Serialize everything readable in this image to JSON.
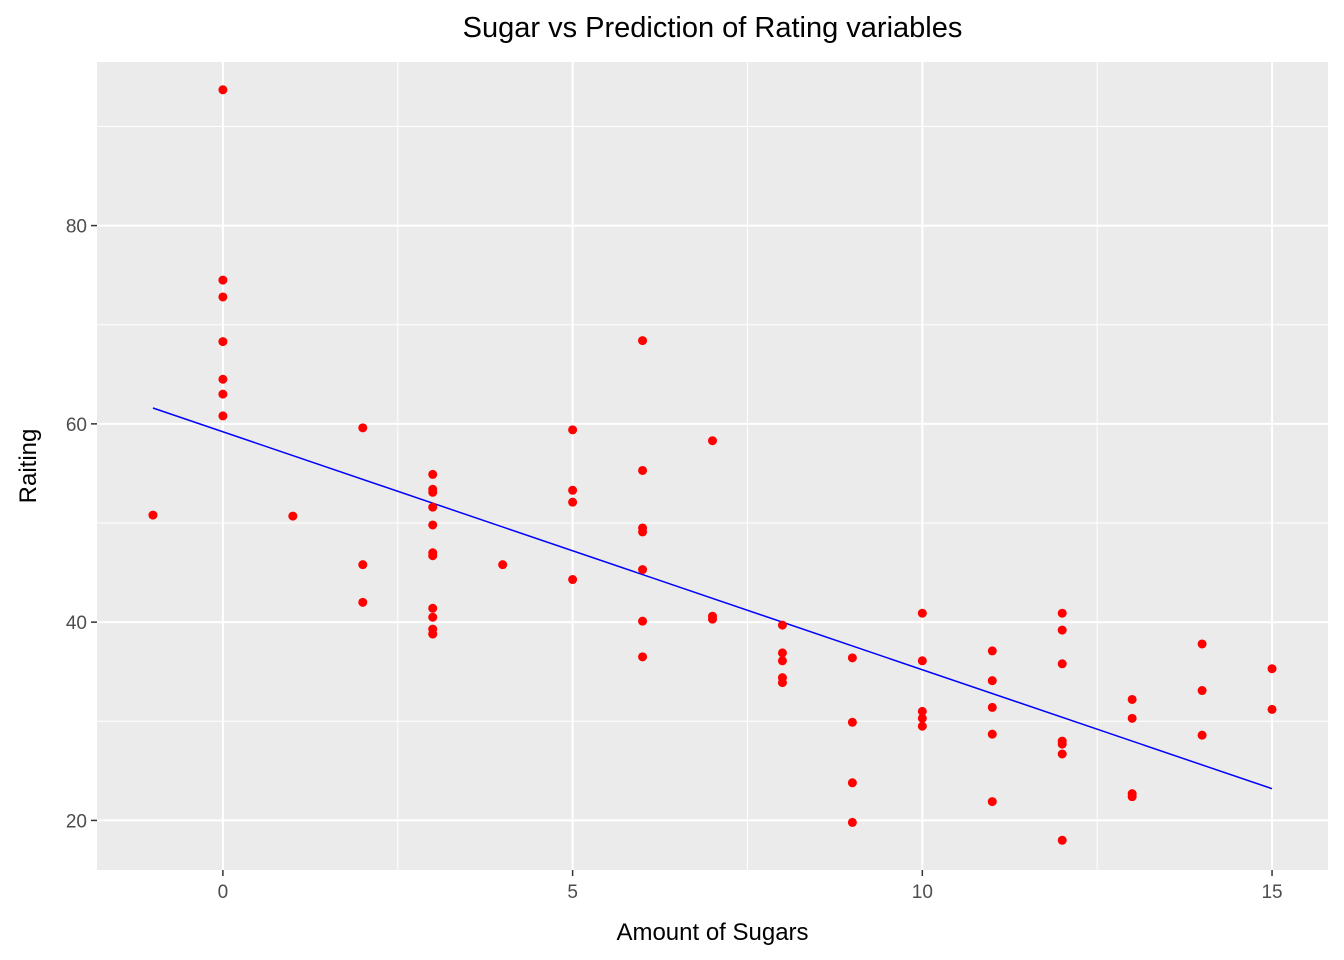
{
  "chart_data": {
    "type": "scatter",
    "title": "Sugar vs Prediction of Rating variables",
    "xlabel": "Amount of Sugars",
    "ylabel": "Raiting",
    "xlim": [
      -1.8,
      15.8
    ],
    "ylim": [
      15,
      96.5
    ],
    "x_ticks": [
      0,
      5,
      10,
      15
    ],
    "y_ticks": [
      20,
      40,
      60,
      80
    ],
    "grid": true,
    "point_color": "#ff0000",
    "line_color": "#0000ff",
    "panel_color": "#ebebeb",
    "points": [
      [
        -1,
        50.8
      ],
      [
        0,
        93.7
      ],
      [
        0,
        74.5
      ],
      [
        0,
        72.8
      ],
      [
        0,
        68.3
      ],
      [
        0,
        64.5
      ],
      [
        0,
        63.0
      ],
      [
        0,
        60.8
      ],
      [
        1,
        50.7
      ],
      [
        2,
        59.6
      ],
      [
        2,
        45.8
      ],
      [
        2,
        42.0
      ],
      [
        3,
        54.9
      ],
      [
        3,
        53.4
      ],
      [
        3,
        53.1
      ],
      [
        3,
        51.6
      ],
      [
        3,
        49.8
      ],
      [
        3,
        47.0
      ],
      [
        3,
        46.7
      ],
      [
        3,
        41.4
      ],
      [
        3,
        40.5
      ],
      [
        3,
        39.3
      ],
      [
        3,
        38.8
      ],
      [
        4,
        45.8
      ],
      [
        5,
        59.4
      ],
      [
        5,
        53.3
      ],
      [
        5,
        52.1
      ],
      [
        5,
        44.3
      ],
      [
        6,
        68.4
      ],
      [
        6,
        55.3
      ],
      [
        6,
        49.5
      ],
      [
        6,
        49.1
      ],
      [
        6,
        45.3
      ],
      [
        6,
        40.1
      ],
      [
        6,
        36.5
      ],
      [
        7,
        58.3
      ],
      [
        7,
        40.6
      ],
      [
        7,
        40.3
      ],
      [
        8,
        39.7
      ],
      [
        8,
        36.9
      ],
      [
        8,
        36.1
      ],
      [
        8,
        34.4
      ],
      [
        8,
        33.9
      ],
      [
        9,
        36.4
      ],
      [
        9,
        29.9
      ],
      [
        9,
        23.8
      ],
      [
        9,
        19.8
      ],
      [
        10,
        40.9
      ],
      [
        10,
        36.1
      ],
      [
        10,
        31.0
      ],
      [
        10,
        30.3
      ],
      [
        10,
        29.5
      ],
      [
        11,
        37.1
      ],
      [
        11,
        34.1
      ],
      [
        11,
        31.4
      ],
      [
        11,
        28.7
      ],
      [
        11,
        21.9
      ],
      [
        12,
        40.9
      ],
      [
        12,
        39.2
      ],
      [
        12,
        35.8
      ],
      [
        12,
        28.0
      ],
      [
        12,
        27.7
      ],
      [
        12,
        26.7
      ],
      [
        12,
        18.0
      ],
      [
        13,
        32.2
      ],
      [
        13,
        30.3
      ],
      [
        13,
        22.7
      ],
      [
        13,
        22.4
      ],
      [
        14,
        37.8
      ],
      [
        14,
        33.1
      ],
      [
        14,
        28.6
      ],
      [
        15,
        35.3
      ],
      [
        15,
        31.2
      ]
    ],
    "fit_line": {
      "x": [
        -1,
        15
      ],
      "y": [
        61.6,
        23.2
      ]
    }
  }
}
